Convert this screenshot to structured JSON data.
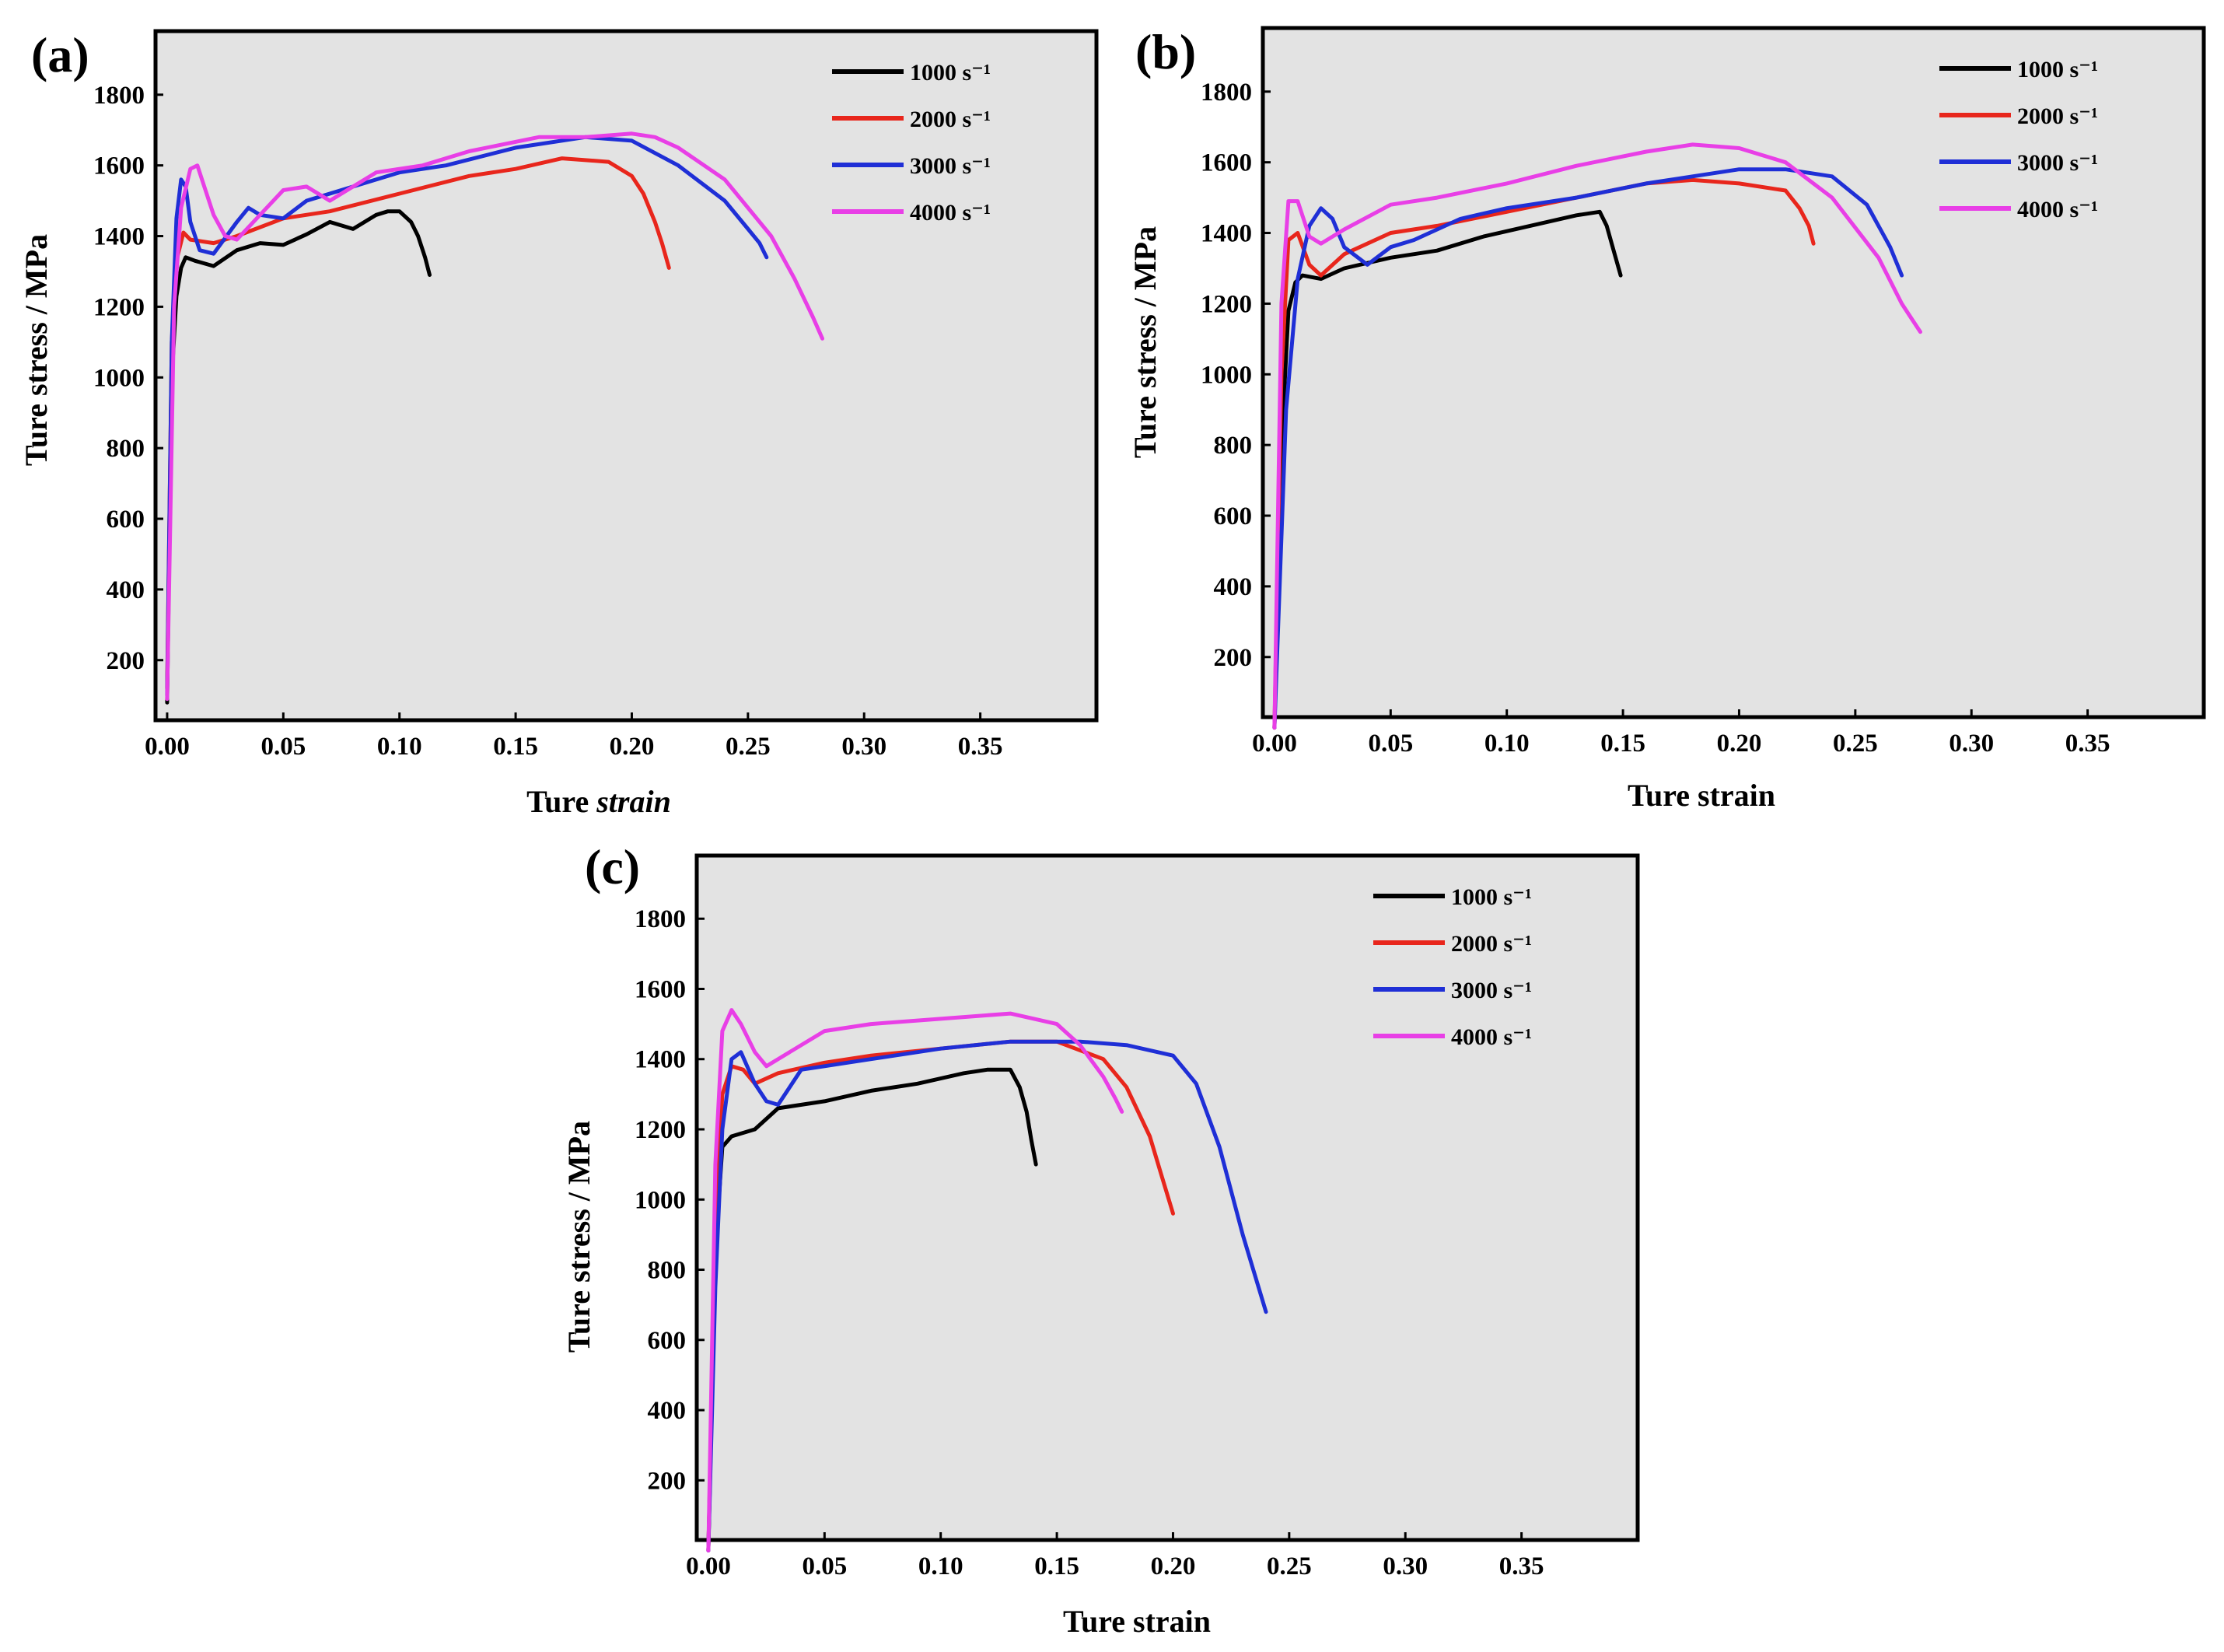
{
  "figure": {
    "panels": [
      {
        "label": "(a)",
        "ylabel": "Ture stress / MPa",
        "xlabel_plain": "Ture ",
        "xlabel_italic": "strain"
      },
      {
        "label": "(b)",
        "ylabel": "Ture stress / MPa",
        "xlabel_plain": "Ture strain",
        "xlabel_italic": ""
      },
      {
        "label": "(c)",
        "ylabel": "Ture stress / MPa",
        "xlabel_plain": "Ture strain",
        "xlabel_italic": ""
      }
    ]
  },
  "colors": {
    "1000": "#000000",
    "2000": "#e8261c",
    "3000": "#1f2fd6",
    "4000": "#e83fe6",
    "plot_bg": "#e3e3e3"
  },
  "chart_data": [
    {
      "type": "line",
      "panel": "(a)",
      "title": "",
      "xlabel": "Ture strain",
      "ylabel": "Ture stress / MPa",
      "xlim": [
        -0.005,
        0.4
      ],
      "ylim": [
        30,
        1980
      ],
      "xticks": [
        "0.00",
        "0.05",
        "0.10",
        "0.15",
        "0.20",
        "0.25",
        "0.30",
        "0.35"
      ],
      "yticks": [
        "200",
        "400",
        "600",
        "800",
        "1000",
        "1200",
        "1400",
        "1600",
        "1800"
      ],
      "legend": [
        "1000 s⁻¹",
        "2000 s⁻¹",
        "3000 s⁻¹",
        "4000 s⁻¹"
      ],
      "series": [
        {
          "name": "1000 s⁻¹",
          "color": "#000000",
          "x": [
            0,
            0.002,
            0.004,
            0.006,
            0.008,
            0.012,
            0.02,
            0.03,
            0.04,
            0.05,
            0.06,
            0.07,
            0.08,
            0.09,
            0.095,
            0.1,
            0.105,
            0.108,
            0.111,
            0.113
          ],
          "y": [
            80,
            1000,
            1230,
            1310,
            1340,
            1330,
            1315,
            1360,
            1380,
            1375,
            1405,
            1440,
            1420,
            1460,
            1470,
            1470,
            1440,
            1400,
            1340,
            1290
          ]
        },
        {
          "name": "2000 s⁻¹",
          "color": "#e8261c",
          "x": [
            0,
            0.002,
            0.004,
            0.007,
            0.01,
            0.02,
            0.03,
            0.05,
            0.07,
            0.1,
            0.13,
            0.15,
            0.17,
            0.19,
            0.2,
            0.205,
            0.21,
            0.213,
            0.216
          ],
          "y": [
            120,
            1100,
            1330,
            1410,
            1390,
            1380,
            1400,
            1450,
            1470,
            1520,
            1570,
            1590,
            1620,
            1610,
            1570,
            1520,
            1440,
            1380,
            1310
          ]
        },
        {
          "name": "3000 s⁻¹",
          "color": "#1f2fd6",
          "x": [
            0,
            0.002,
            0.004,
            0.006,
            0.008,
            0.01,
            0.014,
            0.02,
            0.03,
            0.035,
            0.04,
            0.05,
            0.06,
            0.08,
            0.1,
            0.12,
            0.15,
            0.18,
            0.2,
            0.22,
            0.24,
            0.25,
            0.255,
            0.258
          ],
          "y": [
            100,
            1100,
            1450,
            1560,
            1540,
            1440,
            1360,
            1350,
            1440,
            1480,
            1460,
            1450,
            1500,
            1540,
            1580,
            1600,
            1650,
            1680,
            1670,
            1600,
            1500,
            1420,
            1380,
            1340
          ]
        },
        {
          "name": "4000 s⁻¹",
          "color": "#e83fe6",
          "x": [
            0,
            0.003,
            0.006,
            0.01,
            0.013,
            0.016,
            0.02,
            0.025,
            0.03,
            0.04,
            0.05,
            0.06,
            0.07,
            0.09,
            0.11,
            0.13,
            0.16,
            0.18,
            0.2,
            0.21,
            0.22,
            0.24,
            0.26,
            0.27,
            0.278,
            0.282
          ],
          "y": [
            90,
            1200,
            1480,
            1590,
            1600,
            1540,
            1460,
            1400,
            1390,
            1460,
            1530,
            1540,
            1500,
            1580,
            1600,
            1640,
            1680,
            1680,
            1690,
            1680,
            1650,
            1560,
            1400,
            1280,
            1170,
            1110
          ]
        }
      ]
    },
    {
      "type": "line",
      "panel": "(b)",
      "title": "",
      "xlabel": "Ture strain",
      "ylabel": "Ture stress / MPa",
      "xlim": [
        -0.005,
        0.4
      ],
      "ylim": [
        30,
        1980
      ],
      "xticks": [
        "0.00",
        "0.05",
        "0.10",
        "0.15",
        "0.20",
        "0.25",
        "0.30",
        "0.35"
      ],
      "yticks": [
        "200",
        "400",
        "600",
        "800",
        "1000",
        "1200",
        "1400",
        "1600",
        "1800"
      ],
      "legend": [
        "1000 s⁻¹",
        "2000 s⁻¹",
        "3000 s⁻¹",
        "4000 s⁻¹"
      ],
      "series": [
        {
          "name": "1000 s⁻¹",
          "color": "#000000",
          "x": [
            0,
            0.003,
            0.006,
            0.009,
            0.012,
            0.02,
            0.03,
            0.05,
            0.07,
            0.09,
            0.11,
            0.13,
            0.14,
            0.143,
            0.146,
            0.149
          ],
          "y": [
            0,
            800,
            1180,
            1260,
            1280,
            1270,
            1300,
            1330,
            1350,
            1390,
            1420,
            1450,
            1460,
            1420,
            1350,
            1280
          ]
        },
        {
          "name": "2000 s⁻¹",
          "color": "#e8261c",
          "x": [
            0,
            0.003,
            0.006,
            0.01,
            0.015,
            0.02,
            0.03,
            0.05,
            0.07,
            0.1,
            0.13,
            0.16,
            0.18,
            0.2,
            0.22,
            0.226,
            0.23,
            0.232
          ],
          "y": [
            0,
            1000,
            1380,
            1400,
            1310,
            1280,
            1340,
            1400,
            1420,
            1460,
            1500,
            1540,
            1550,
            1540,
            1520,
            1470,
            1420,
            1370
          ]
        },
        {
          "name": "3000 s⁻¹",
          "color": "#1f2fd6",
          "x": [
            0,
            0.005,
            0.01,
            0.015,
            0.02,
            0.025,
            0.03,
            0.04,
            0.05,
            0.06,
            0.08,
            0.1,
            0.13,
            0.16,
            0.2,
            0.22,
            0.24,
            0.255,
            0.265,
            0.27
          ],
          "y": [
            0,
            900,
            1270,
            1420,
            1470,
            1440,
            1360,
            1310,
            1360,
            1380,
            1440,
            1470,
            1500,
            1540,
            1580,
            1580,
            1560,
            1480,
            1360,
            1280
          ]
        },
        {
          "name": "4000 s⁻¹",
          "color": "#e83fe6",
          "x": [
            0,
            0.003,
            0.006,
            0.01,
            0.015,
            0.02,
            0.03,
            0.05,
            0.07,
            0.1,
            0.13,
            0.16,
            0.18,
            0.2,
            0.22,
            0.24,
            0.26,
            0.27,
            0.275,
            0.278
          ],
          "y": [
            0,
            1200,
            1490,
            1490,
            1390,
            1370,
            1410,
            1480,
            1500,
            1540,
            1590,
            1630,
            1650,
            1640,
            1600,
            1500,
            1330,
            1200,
            1150,
            1120
          ]
        }
      ]
    },
    {
      "type": "line",
      "panel": "(c)",
      "title": "",
      "xlabel": "Ture strain",
      "ylabel": "Ture stress / MPa",
      "xlim": [
        -0.005,
        0.4
      ],
      "ylim": [
        30,
        1980
      ],
      "xticks": [
        "0.00",
        "0.05",
        "0.10",
        "0.15",
        "0.20",
        "0.25",
        "0.30",
        "0.35"
      ],
      "yticks": [
        "200",
        "400",
        "600",
        "800",
        "1000",
        "1200",
        "1400",
        "1600",
        "1800"
      ],
      "legend": [
        "1000 s⁻¹",
        "2000 s⁻¹",
        "3000 s⁻¹",
        "4000 s⁻¹"
      ],
      "series": [
        {
          "name": "1000 s⁻¹",
          "color": "#000000",
          "x": [
            0,
            0.003,
            0.006,
            0.01,
            0.02,
            0.03,
            0.05,
            0.07,
            0.09,
            0.11,
            0.12,
            0.13,
            0.134,
            0.137,
            0.139,
            0.141
          ],
          "y": [
            0,
            850,
            1150,
            1180,
            1200,
            1260,
            1280,
            1310,
            1330,
            1360,
            1370,
            1370,
            1320,
            1250,
            1170,
            1100
          ]
        },
        {
          "name": "2000 s⁻¹",
          "color": "#e8261c",
          "x": [
            0,
            0.003,
            0.006,
            0.01,
            0.015,
            0.02,
            0.03,
            0.05,
            0.07,
            0.1,
            0.13,
            0.15,
            0.17,
            0.18,
            0.19,
            0.195,
            0.2
          ],
          "y": [
            0,
            900,
            1300,
            1380,
            1370,
            1330,
            1360,
            1390,
            1410,
            1430,
            1450,
            1450,
            1400,
            1320,
            1180,
            1070,
            960
          ]
        },
        {
          "name": "3000 s⁻¹",
          "color": "#1f2fd6",
          "x": [
            0,
            0.003,
            0.006,
            0.01,
            0.014,
            0.02,
            0.025,
            0.03,
            0.04,
            0.05,
            0.07,
            0.1,
            0.13,
            0.16,
            0.18,
            0.2,
            0.21,
            0.22,
            0.23,
            0.24
          ],
          "y": [
            0,
            750,
            1200,
            1400,
            1420,
            1330,
            1280,
            1270,
            1370,
            1380,
            1400,
            1430,
            1450,
            1450,
            1440,
            1410,
            1330,
            1150,
            900,
            680
          ]
        },
        {
          "name": "4000 s⁻¹",
          "color": "#e83fe6",
          "x": [
            0,
            0.003,
            0.006,
            0.01,
            0.014,
            0.02,
            0.025,
            0.03,
            0.05,
            0.07,
            0.09,
            0.11,
            0.13,
            0.15,
            0.16,
            0.17,
            0.175,
            0.178
          ],
          "y": [
            0,
            1100,
            1480,
            1540,
            1500,
            1420,
            1380,
            1400,
            1480,
            1500,
            1510,
            1520,
            1530,
            1500,
            1440,
            1350,
            1290,
            1250
          ]
        }
      ]
    }
  ]
}
